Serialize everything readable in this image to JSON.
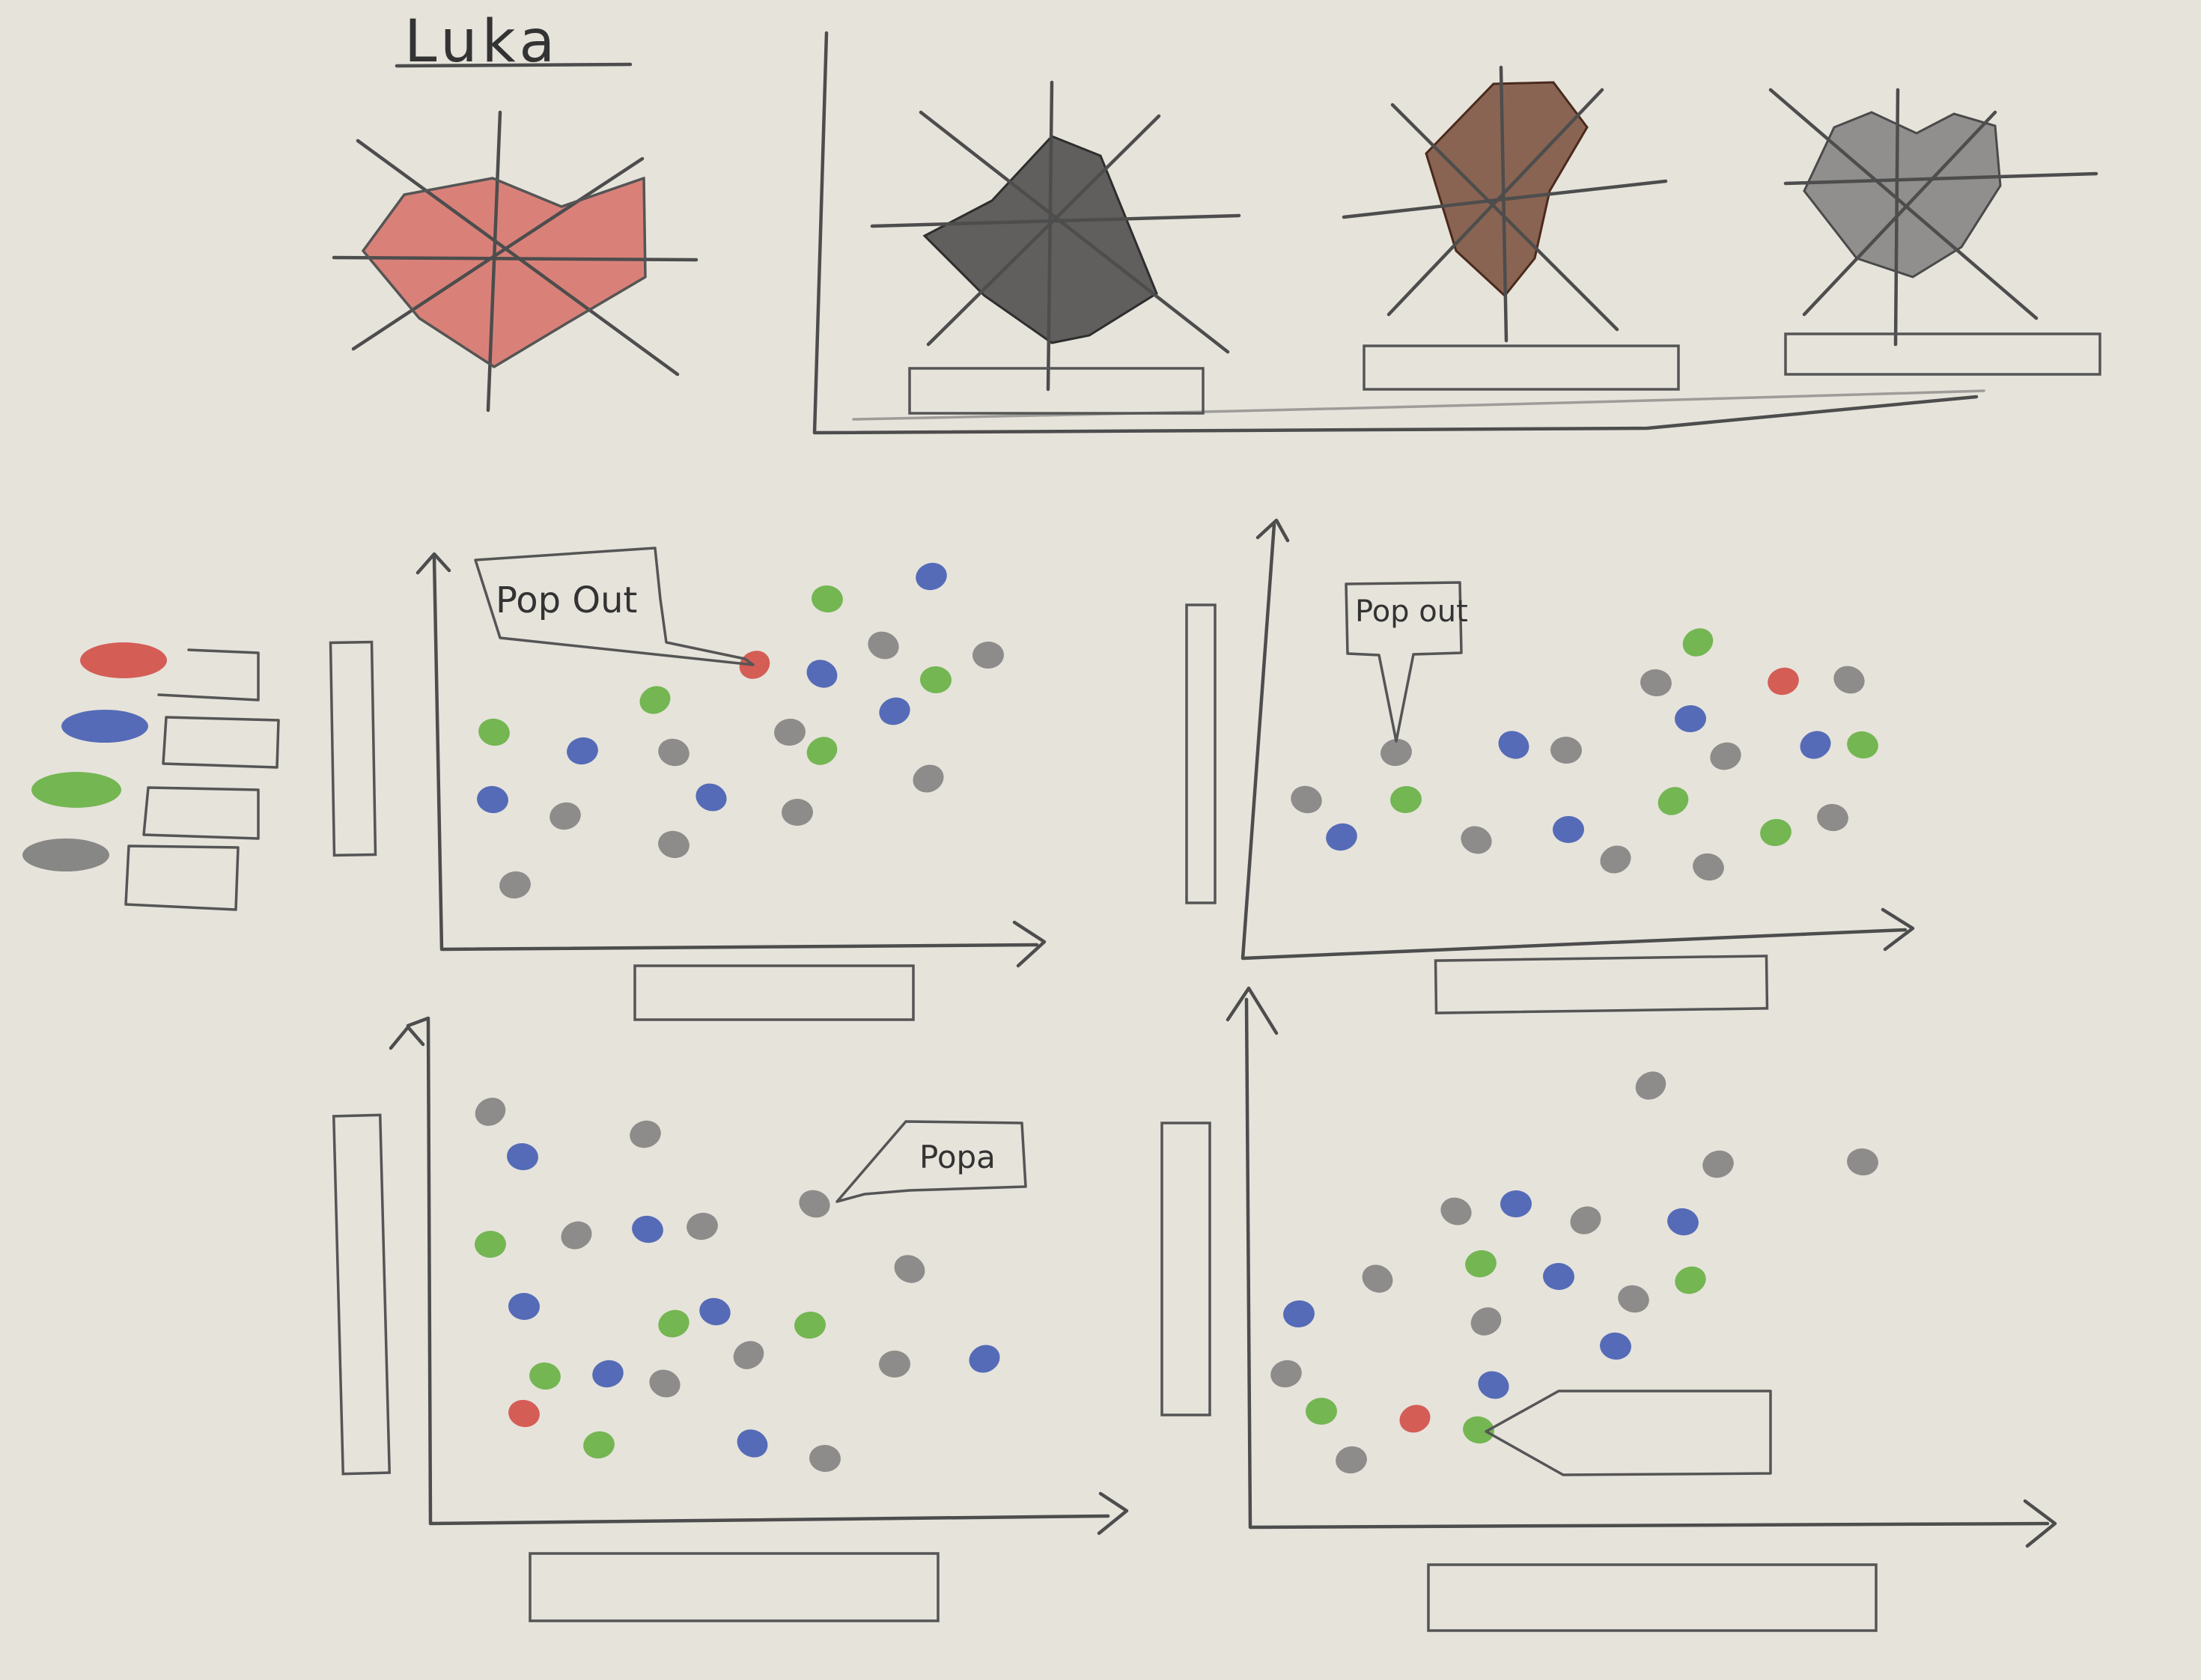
{
  "title": "Luka",
  "popout_labels": [
    "Pop Out",
    "Pop out",
    "Popa"
  ],
  "colors": {
    "red": "#d0453e",
    "blue": "#3b56b0",
    "green": "#5fae3a",
    "gray": "#6f6f6f",
    "black": "#3a3a3a",
    "brown": "#6b3a26",
    "paper": "#e6e3db",
    "pencil": "#4d4d4d"
  },
  "radar_charts": [
    {
      "name": "radar-main",
      "fill": "red"
    },
    {
      "name": "radar-small-1",
      "fill": "black"
    },
    {
      "name": "radar-small-2",
      "fill": "brown"
    },
    {
      "name": "radar-small-3",
      "fill": "gray"
    }
  ],
  "legend_swatches": [
    "red",
    "blue",
    "green",
    "gray"
  ]
}
